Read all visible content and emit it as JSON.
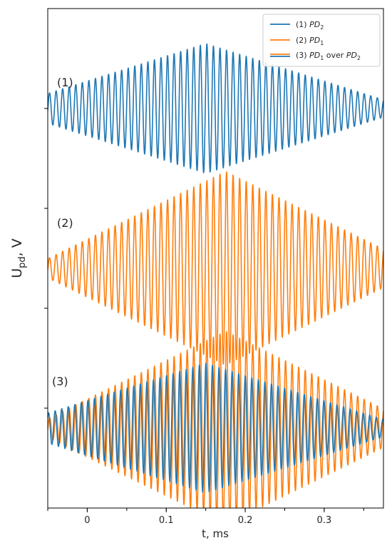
{
  "chart_data": {
    "type": "line",
    "title": "",
    "xlabel": "t, ms",
    "ylabel_main": "U",
    "ylabel_sub": "pd",
    "ylabel_tail": ", V",
    "xlim": [
      -0.05,
      0.375
    ],
    "x_ticks": [
      0,
      0.1,
      0.2,
      0.3
    ],
    "x_tick_labels": [
      "0",
      "0.1",
      "0.2",
      "0.3"
    ],
    "y_ticks": [
      1,
      2,
      3,
      4
    ],
    "y_ticklabels_shown": false,
    "grid": false,
    "legend_position": "top-right",
    "colors": {
      "pd2": "#1f77b4",
      "pd1": "#ff7f0e"
    },
    "panels": [
      {
        "label": "(1)",
        "baseline": 4
      },
      {
        "label": "(2)",
        "baseline": 2.4
      },
      {
        "label": "(3)",
        "baseline": 0.8
      }
    ],
    "series": [
      {
        "legend": {
          "prefix": "(1) ",
          "var": "PD",
          "sub": "2",
          "suffix": ""
        },
        "color": "#1f77b4",
        "panel": 1,
        "carrier_period_ms": 0.0083,
        "envelope_center_ms": 0.15,
        "envelope_halfwidth_ms": 0.26,
        "amp_peak": 0.65,
        "amp_edge": 0.07
      },
      {
        "legend": {
          "prefix": "(2) ",
          "var": "PD",
          "sub": "1",
          "suffix": ""
        },
        "color": "#ff7f0e",
        "panel": 2,
        "carrier_period_ms": 0.0083,
        "envelope_center_ms": 0.175,
        "envelope_halfwidth_ms": 0.25,
        "amp_peak": 0.97,
        "amp_edge": 0.07
      },
      {
        "legend": {
          "prefix": "(3) ",
          "var": "PD",
          "sub": "1",
          "suffix": " over ",
          "var2": "PD",
          "sub2": "2"
        },
        "color": "#1f77b4",
        "color2": "#ff7f0e",
        "panel": 3,
        "carrier_period_ms": 0.0083
      }
    ]
  }
}
